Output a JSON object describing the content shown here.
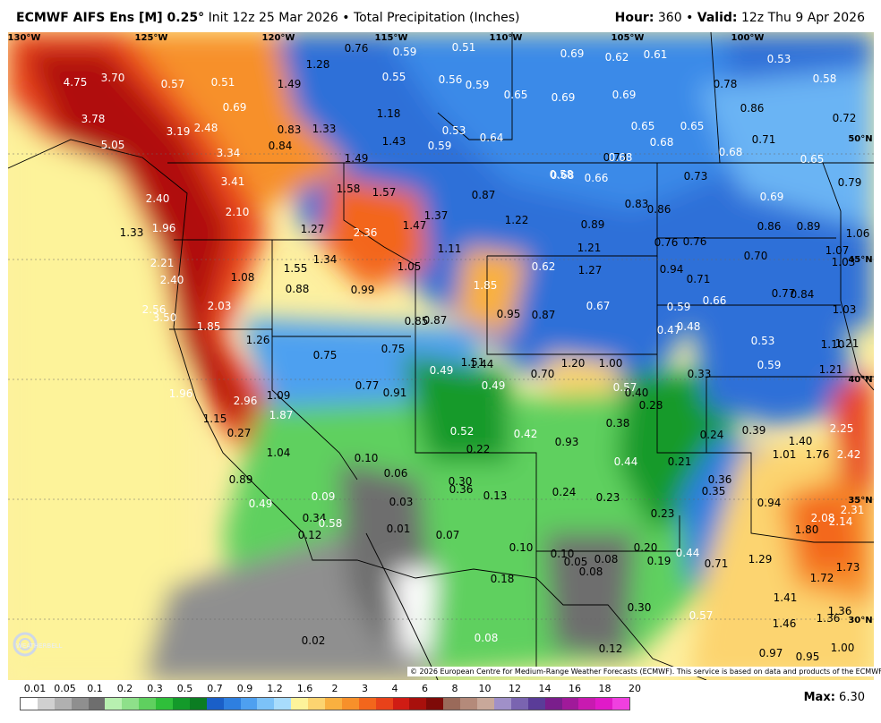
{
  "header": {
    "model": "ECMWF AIFS Ens [M] 0.25°",
    "init": "Init 12z 25 Mar 2026",
    "separator": "•",
    "product": "Total Precipitation (Inches)",
    "hour_label": "Hour:",
    "hour_value": "360",
    "valid_label": "Valid:",
    "valid_value": "12z Thu 9 Apr 2026"
  },
  "longitudes": [
    "130°W",
    "125°W",
    "120°W",
    "115°W",
    "110°W",
    "105°W",
    "100°W"
  ],
  "latitudes": [
    "50°N",
    "45°N",
    "40°N",
    "35°N",
    "30°N"
  ],
  "map_labels": [
    {
      "v": "4.75",
      "c": "white"
    },
    {
      "v": "3.70",
      "c": "white"
    },
    {
      "v": "3.78",
      "c": "white"
    },
    {
      "v": "5.05",
      "c": "white"
    },
    {
      "v": "3.19",
      "c": "white"
    },
    {
      "v": "2.48",
      "c": "white"
    },
    {
      "v": "3.34",
      "c": "white"
    },
    {
      "v": "3.41",
      "c": "white"
    },
    {
      "v": "2.40",
      "c": "white"
    },
    {
      "v": "1.96",
      "c": "white"
    },
    {
      "v": "2.10",
      "c": "white"
    },
    {
      "v": "2.21",
      "c": "white"
    },
    {
      "v": "2.40",
      "c": "white"
    },
    {
      "v": "2.56",
      "c": "white"
    },
    {
      "v": "3.50",
      "c": "white"
    },
    {
      "v": "2.03",
      "c": "white"
    },
    {
      "v": "1.85",
      "c": "white"
    },
    {
      "v": "1.96",
      "c": "white"
    },
    {
      "v": "2.96",
      "c": "white"
    },
    {
      "v": "1.87",
      "c": "white"
    },
    {
      "v": "1.33",
      "c": "black"
    },
    {
      "v": "1.08",
      "c": "black"
    },
    {
      "v": "1.26",
      "c": "black"
    },
    {
      "v": "1.09",
      "c": "black"
    },
    {
      "v": "1.15",
      "c": "black"
    },
    {
      "v": "1.04",
      "c": "black"
    },
    {
      "v": "0.89",
      "c": "black"
    },
    {
      "v": "0.49",
      "c": "white"
    },
    {
      "v": "0.57",
      "c": "white"
    },
    {
      "v": "0.51",
      "c": "white"
    },
    {
      "v": "0.69",
      "c": "white"
    },
    {
      "v": "0.83",
      "c": "black"
    },
    {
      "v": "0.84",
      "c": "black"
    },
    {
      "v": "1.28",
      "c": "black"
    },
    {
      "v": "1.49",
      "c": "black"
    },
    {
      "v": "1.33",
      "c": "black"
    },
    {
      "v": "0.76",
      "c": "black"
    },
    {
      "v": "0.59",
      "c": "white"
    },
    {
      "v": "0.55",
      "c": "white"
    },
    {
      "v": "1.18",
      "c": "black"
    },
    {
      "v": "1.43",
      "c": "black"
    },
    {
      "v": "0.51",
      "c": "white"
    },
    {
      "v": "0.56",
      "c": "white"
    },
    {
      "v": "0.59",
      "c": "white"
    },
    {
      "v": "0.53",
      "c": "white"
    },
    {
      "v": "0.59",
      "c": "white"
    },
    {
      "v": "0.64",
      "c": "white"
    },
    {
      "v": "0.65",
      "c": "white"
    },
    {
      "v": "0.69",
      "c": "white"
    },
    {
      "v": "0.62",
      "c": "white"
    },
    {
      "v": "0.61",
      "c": "white"
    },
    {
      "v": "0.69",
      "c": "white"
    },
    {
      "v": "0.69",
      "c": "white"
    },
    {
      "v": "0.65",
      "c": "white"
    },
    {
      "v": "0.68",
      "c": "white"
    },
    {
      "v": "0.65",
      "c": "white"
    },
    {
      "v": "0.73",
      "c": "black"
    },
    {
      "v": "0.68",
      "c": "white"
    },
    {
      "v": "0.53",
      "c": "white"
    },
    {
      "v": "0.58",
      "c": "white"
    },
    {
      "v": "0.78",
      "c": "black"
    },
    {
      "v": "0.86",
      "c": "black"
    },
    {
      "v": "0.72",
      "c": "black"
    },
    {
      "v": "0.71",
      "c": "black"
    },
    {
      "v": "0.68",
      "c": "white"
    },
    {
      "v": "0.65",
      "c": "white"
    },
    {
      "v": "0.58",
      "c": "white"
    },
    {
      "v": "1.49",
      "c": "black"
    },
    {
      "v": "1.58",
      "c": "black"
    },
    {
      "v": "1.57",
      "c": "black"
    },
    {
      "v": "2.36",
      "c": "white"
    },
    {
      "v": "1.27",
      "c": "black"
    },
    {
      "v": "1.34",
      "c": "black"
    },
    {
      "v": "1.55",
      "c": "black"
    },
    {
      "v": "0.88",
      "c": "black"
    },
    {
      "v": "0.99",
      "c": "black"
    },
    {
      "v": "1.47",
      "c": "black"
    },
    {
      "v": "1.37",
      "c": "black"
    },
    {
      "v": "1.05",
      "c": "black"
    },
    {
      "v": "1.11",
      "c": "black"
    },
    {
      "v": "0.87",
      "c": "black"
    },
    {
      "v": "1.22",
      "c": "black"
    },
    {
      "v": "0.68",
      "c": "white"
    },
    {
      "v": "0.66",
      "c": "white"
    },
    {
      "v": "0.83",
      "c": "black"
    },
    {
      "v": "0.86",
      "c": "black"
    },
    {
      "v": "0.89",
      "c": "black"
    },
    {
      "v": "0.73",
      "c": "black"
    },
    {
      "v": "0.69",
      "c": "white"
    },
    {
      "v": "0.76",
      "c": "black"
    },
    {
      "v": "0.79",
      "c": "black"
    },
    {
      "v": "1.21",
      "c": "black"
    },
    {
      "v": "0.62",
      "c": "white"
    },
    {
      "v": "1.27",
      "c": "black"
    },
    {
      "v": "1.85",
      "c": "white"
    },
    {
      "v": "0.95",
      "c": "black"
    },
    {
      "v": "0.87",
      "c": "black"
    },
    {
      "v": "0.67",
      "c": "white"
    },
    {
      "v": "0.94",
      "c": "black"
    },
    {
      "v": "0.71",
      "c": "black"
    },
    {
      "v": "0.76",
      "c": "black"
    },
    {
      "v": "0.86",
      "c": "black"
    },
    {
      "v": "0.89",
      "c": "black"
    },
    {
      "v": "0.70",
      "c": "black"
    },
    {
      "v": "1.06",
      "c": "black"
    },
    {
      "v": "1.07",
      "c": "black"
    },
    {
      "v": "1.03",
      "c": "black"
    },
    {
      "v": "0.77",
      "c": "black"
    },
    {
      "v": "0.84",
      "c": "black"
    },
    {
      "v": "1.03",
      "c": "black"
    },
    {
      "v": "0.59",
      "c": "white"
    },
    {
      "v": "0.66",
      "c": "white"
    },
    {
      "v": "0.47",
      "c": "white"
    },
    {
      "v": "0.48",
      "c": "white"
    },
    {
      "v": "0.53",
      "c": "white"
    },
    {
      "v": "0.59",
      "c": "white"
    },
    {
      "v": "1.10",
      "c": "black"
    },
    {
      "v": "1.21",
      "c": "black"
    },
    {
      "v": "1.21",
      "c": "black"
    },
    {
      "v": "0.85",
      "c": "black"
    },
    {
      "v": "0.87",
      "c": "black"
    },
    {
      "v": "0.75",
      "c": "black"
    },
    {
      "v": "0.75",
      "c": "black"
    },
    {
      "v": "0.77",
      "c": "black"
    },
    {
      "v": "0.91",
      "c": "black"
    },
    {
      "v": "0.49",
      "c": "white"
    },
    {
      "v": "1.51",
      "c": "black"
    },
    {
      "v": "1.44",
      "c": "black"
    },
    {
      "v": "0.49",
      "c": "white"
    },
    {
      "v": "0.70",
      "c": "black"
    },
    {
      "v": "1.20",
      "c": "black"
    },
    {
      "v": "1.00",
      "c": "black"
    },
    {
      "v": "0.57",
      "c": "white"
    },
    {
      "v": "0.40",
      "c": "black"
    },
    {
      "v": "0.28",
      "c": "black"
    },
    {
      "v": "0.33",
      "c": "black"
    },
    {
      "v": "0.38",
      "c": "black"
    },
    {
      "v": "0.24",
      "c": "black"
    },
    {
      "v": "0.39",
      "c": "black"
    },
    {
      "v": "1.40",
      "c": "black"
    },
    {
      "v": "2.25",
      "c": "white"
    },
    {
      "v": "1.01",
      "c": "black"
    },
    {
      "v": "1.76",
      "c": "black"
    },
    {
      "v": "2.42",
      "c": "white"
    },
    {
      "v": "0.27",
      "c": "black"
    },
    {
      "v": "0.52",
      "c": "white"
    },
    {
      "v": "0.42",
      "c": "white"
    },
    {
      "v": "0.93",
      "c": "black"
    },
    {
      "v": "0.10",
      "c": "black"
    },
    {
      "v": "0.22",
      "c": "black"
    },
    {
      "v": "0.44",
      "c": "white"
    },
    {
      "v": "0.21",
      "c": "black"
    },
    {
      "v": "0.06",
      "c": "black"
    },
    {
      "v": "0.30",
      "c": "black"
    },
    {
      "v": "0.36",
      "c": "black"
    },
    {
      "v": "0.13",
      "c": "black"
    },
    {
      "v": "0.24",
      "c": "black"
    },
    {
      "v": "0.23",
      "c": "black"
    },
    {
      "v": "0.36",
      "c": "black"
    },
    {
      "v": "0.35",
      "c": "black"
    },
    {
      "v": "0.94",
      "c": "black"
    },
    {
      "v": "0.09",
      "c": "white"
    },
    {
      "v": "0.03",
      "c": "black"
    },
    {
      "v": "0.23",
      "c": "black"
    },
    {
      "v": "2.08",
      "c": "white"
    },
    {
      "v": "2.31",
      "c": "white"
    },
    {
      "v": "2.14",
      "c": "white"
    },
    {
      "v": "1.80",
      "c": "black"
    },
    {
      "v": "0.34",
      "c": "black"
    },
    {
      "v": "0.58",
      "c": "white"
    },
    {
      "v": "0.12",
      "c": "black"
    },
    {
      "v": "0.01",
      "c": "black"
    },
    {
      "v": "0.07",
      "c": "black"
    },
    {
      "v": "0.10",
      "c": "black"
    },
    {
      "v": "0.10",
      "c": "black"
    },
    {
      "v": "0.20",
      "c": "black"
    },
    {
      "v": "0.44",
      "c": "white"
    },
    {
      "v": "0.05",
      "c": "black"
    },
    {
      "v": "0.08",
      "c": "black"
    },
    {
      "v": "0.08",
      "c": "black"
    },
    {
      "v": "0.19",
      "c": "black"
    },
    {
      "v": "0.71",
      "c": "black"
    },
    {
      "v": "1.29",
      "c": "black"
    },
    {
      "v": "1.72",
      "c": "black"
    },
    {
      "v": "1.73",
      "c": "black"
    },
    {
      "v": "0.18",
      "c": "black"
    },
    {
      "v": "0.30",
      "c": "black"
    },
    {
      "v": "0.57",
      "c": "white"
    },
    {
      "v": "1.41",
      "c": "black"
    },
    {
      "v": "1.46",
      "c": "black"
    },
    {
      "v": "1.36",
      "c": "black"
    },
    {
      "v": "1.36",
      "c": "black"
    },
    {
      "v": "0.02",
      "c": "black"
    },
    {
      "v": "0.08",
      "c": "white"
    },
    {
      "v": "0.12",
      "c": "black"
    },
    {
      "v": "0.97",
      "c": "black"
    },
    {
      "v": "0.95",
      "c": "black"
    },
    {
      "v": "1.00",
      "c": "black"
    }
  ],
  "legend": {
    "ticks": [
      "0.01",
      "0.05",
      "0.1",
      "0.2",
      "0.3",
      "0.5",
      "0.7",
      "0.9",
      "1.2",
      "1.6",
      "2",
      "3",
      "4",
      "6",
      "8",
      "10",
      "12",
      "14",
      "16",
      "18",
      "20"
    ],
    "colors": [
      "#ffffff",
      "#d0d0d0",
      "#b0b0b0",
      "#8f8f8f",
      "#6e6e6e",
      "#b8f0b0",
      "#8ee08a",
      "#5fd05f",
      "#2fbf3a",
      "#139a2a",
      "#0b7d22",
      "#1a5fc8",
      "#2e7fe0",
      "#4ea0f0",
      "#7cc2f8",
      "#a8dcfc",
      "#fdf39a",
      "#fcd470",
      "#f9b040",
      "#f7902a",
      "#f3661c",
      "#e8421a",
      "#d01c14",
      "#a8100c",
      "#7e0a08",
      "#9a6a5a",
      "#b48a7a",
      "#c8a89a",
      "#a090c8",
      "#7a64b0",
      "#5a3c98",
      "#7a1e8c",
      "#a01a9a",
      "#c81ab0",
      "#e01ac8",
      "#f040e0"
    ]
  },
  "max_label": "Max:",
  "max_value": "6.30",
  "copyright": "© 2026 European Centre for Medium-Range Weather Forecasts (ECMWF). This service is based on data and products of the ECMWF.",
  "logo_text": "WEATHERBELL"
}
